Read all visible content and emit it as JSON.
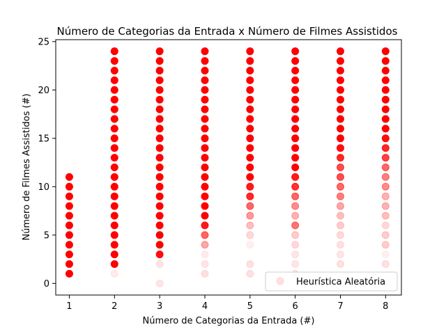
{
  "chart_data": {
    "type": "scatter",
    "title": "Número de Categorias da Entrada x Número de Filmes Assistidos",
    "xlabel": "Número de Categorias da Entrada (#)",
    "ylabel": "Número de Filmes Assistidos (#)",
    "xlim": [
      0.7,
      8.35
    ],
    "ylim": [
      -1.2,
      25.2
    ],
    "xticks": [
      1,
      2,
      3,
      4,
      5,
      6,
      7,
      8
    ],
    "yticks": [
      0,
      5,
      10,
      15,
      20,
      25
    ],
    "grid": false,
    "legend": {
      "position": "bottom-right",
      "entries": [
        "Heurística Aleatória"
      ]
    },
    "marker_color": "#ff0000",
    "series": [
      {
        "name": "Heurística Aleatória",
        "points": [
          {
            "x": 1,
            "y": 1,
            "alpha": 1
          },
          {
            "x": 1,
            "y": 2,
            "alpha": 1
          },
          {
            "x": 1,
            "y": 3,
            "alpha": 1
          },
          {
            "x": 1,
            "y": 4,
            "alpha": 1
          },
          {
            "x": 1,
            "y": 5,
            "alpha": 1
          },
          {
            "x": 1,
            "y": 6,
            "alpha": 1
          },
          {
            "x": 1,
            "y": 7,
            "alpha": 1
          },
          {
            "x": 1,
            "y": 8,
            "alpha": 1
          },
          {
            "x": 1,
            "y": 9,
            "alpha": 1
          },
          {
            "x": 1,
            "y": 10,
            "alpha": 1
          },
          {
            "x": 1,
            "y": 11,
            "alpha": 1
          },
          {
            "x": 2,
            "y": 1,
            "alpha": 0.08
          },
          {
            "x": 2,
            "y": 2,
            "alpha": 1
          },
          {
            "x": 2,
            "y": 3,
            "alpha": 1
          },
          {
            "x": 2,
            "y": 4,
            "alpha": 1
          },
          {
            "x": 2,
            "y": 5,
            "alpha": 1
          },
          {
            "x": 2,
            "y": 6,
            "alpha": 1
          },
          {
            "x": 2,
            "y": 7,
            "alpha": 1
          },
          {
            "x": 2,
            "y": 8,
            "alpha": 1
          },
          {
            "x": 2,
            "y": 9,
            "alpha": 1
          },
          {
            "x": 2,
            "y": 10,
            "alpha": 1
          },
          {
            "x": 2,
            "y": 11,
            "alpha": 1
          },
          {
            "x": 2,
            "y": 12,
            "alpha": 1
          },
          {
            "x": 2,
            "y": 13,
            "alpha": 1
          },
          {
            "x": 2,
            "y": 14,
            "alpha": 1
          },
          {
            "x": 2,
            "y": 15,
            "alpha": 1
          },
          {
            "x": 2,
            "y": 16,
            "alpha": 1
          },
          {
            "x": 2,
            "y": 17,
            "alpha": 1
          },
          {
            "x": 2,
            "y": 18,
            "alpha": 1
          },
          {
            "x": 2,
            "y": 19,
            "alpha": 1
          },
          {
            "x": 2,
            "y": 20,
            "alpha": 1
          },
          {
            "x": 2,
            "y": 21,
            "alpha": 1
          },
          {
            "x": 2,
            "y": 22,
            "alpha": 1
          },
          {
            "x": 2,
            "y": 23,
            "alpha": 1
          },
          {
            "x": 2,
            "y": 24,
            "alpha": 1
          },
          {
            "x": 3,
            "y": 0,
            "alpha": 0.1
          },
          {
            "x": 3,
            "y": 2,
            "alpha": 0.1
          },
          {
            "x": 3,
            "y": 3,
            "alpha": 0.95
          },
          {
            "x": 3,
            "y": 4,
            "alpha": 1
          },
          {
            "x": 3,
            "y": 5,
            "alpha": 1
          },
          {
            "x": 3,
            "y": 6,
            "alpha": 1
          },
          {
            "x": 3,
            "y": 7,
            "alpha": 1
          },
          {
            "x": 3,
            "y": 8,
            "alpha": 1
          },
          {
            "x": 3,
            "y": 9,
            "alpha": 1
          },
          {
            "x": 3,
            "y": 10,
            "alpha": 1
          },
          {
            "x": 3,
            "y": 11,
            "alpha": 1
          },
          {
            "x": 3,
            "y": 12,
            "alpha": 1
          },
          {
            "x": 3,
            "y": 13,
            "alpha": 1
          },
          {
            "x": 3,
            "y": 14,
            "alpha": 1
          },
          {
            "x": 3,
            "y": 15,
            "alpha": 1
          },
          {
            "x": 3,
            "y": 16,
            "alpha": 1
          },
          {
            "x": 3,
            "y": 17,
            "alpha": 1
          },
          {
            "x": 3,
            "y": 18,
            "alpha": 1
          },
          {
            "x": 3,
            "y": 19,
            "alpha": 1
          },
          {
            "x": 3,
            "y": 20,
            "alpha": 1
          },
          {
            "x": 3,
            "y": 21,
            "alpha": 1
          },
          {
            "x": 3,
            "y": 22,
            "alpha": 1
          },
          {
            "x": 3,
            "y": 23,
            "alpha": 1
          },
          {
            "x": 3,
            "y": 24,
            "alpha": 1
          },
          {
            "x": 4,
            "y": 1,
            "alpha": 0.12
          },
          {
            "x": 4,
            "y": 2,
            "alpha": 0.1
          },
          {
            "x": 4,
            "y": 3,
            "alpha": 0.08
          },
          {
            "x": 4,
            "y": 4,
            "alpha": 0.35
          },
          {
            "x": 4,
            "y": 5,
            "alpha": 0.6
          },
          {
            "x": 4,
            "y": 6,
            "alpha": 0.9
          },
          {
            "x": 4,
            "y": 7,
            "alpha": 1
          },
          {
            "x": 4,
            "y": 8,
            "alpha": 1
          },
          {
            "x": 4,
            "y": 9,
            "alpha": 1
          },
          {
            "x": 4,
            "y": 10,
            "alpha": 1
          },
          {
            "x": 4,
            "y": 11,
            "alpha": 1
          },
          {
            "x": 4,
            "y": 12,
            "alpha": 1
          },
          {
            "x": 4,
            "y": 13,
            "alpha": 1
          },
          {
            "x": 4,
            "y": 14,
            "alpha": 1
          },
          {
            "x": 4,
            "y": 15,
            "alpha": 1
          },
          {
            "x": 4,
            "y": 16,
            "alpha": 1
          },
          {
            "x": 4,
            "y": 17,
            "alpha": 1
          },
          {
            "x": 4,
            "y": 18,
            "alpha": 1
          },
          {
            "x": 4,
            "y": 19,
            "alpha": 1
          },
          {
            "x": 4,
            "y": 20,
            "alpha": 1
          },
          {
            "x": 4,
            "y": 21,
            "alpha": 1
          },
          {
            "x": 4,
            "y": 22,
            "alpha": 1
          },
          {
            "x": 4,
            "y": 23,
            "alpha": 1
          },
          {
            "x": 4,
            "y": 24,
            "alpha": 1
          },
          {
            "x": 5,
            "y": 1,
            "alpha": 0.12
          },
          {
            "x": 5,
            "y": 2,
            "alpha": 0.12
          },
          {
            "x": 5,
            "y": 4,
            "alpha": 0.06
          },
          {
            "x": 5,
            "y": 5,
            "alpha": 0.15
          },
          {
            "x": 5,
            "y": 6,
            "alpha": 0.25
          },
          {
            "x": 5,
            "y": 7,
            "alpha": 0.4
          },
          {
            "x": 5,
            "y": 8,
            "alpha": 0.6
          },
          {
            "x": 5,
            "y": 9,
            "alpha": 0.85
          },
          {
            "x": 5,
            "y": 10,
            "alpha": 0.9
          },
          {
            "x": 5,
            "y": 11,
            "alpha": 1
          },
          {
            "x": 5,
            "y": 12,
            "alpha": 1
          },
          {
            "x": 5,
            "y": 13,
            "alpha": 1
          },
          {
            "x": 5,
            "y": 14,
            "alpha": 1
          },
          {
            "x": 5,
            "y": 15,
            "alpha": 1
          },
          {
            "x": 5,
            "y": 16,
            "alpha": 1
          },
          {
            "x": 5,
            "y": 17,
            "alpha": 1
          },
          {
            "x": 5,
            "y": 18,
            "alpha": 1
          },
          {
            "x": 5,
            "y": 19,
            "alpha": 1
          },
          {
            "x": 5,
            "y": 20,
            "alpha": 1
          },
          {
            "x": 5,
            "y": 21,
            "alpha": 1
          },
          {
            "x": 5,
            "y": 22,
            "alpha": 1
          },
          {
            "x": 5,
            "y": 23,
            "alpha": 1
          },
          {
            "x": 5,
            "y": 24,
            "alpha": 1
          },
          {
            "x": 6,
            "y": 1,
            "alpha": 0.1
          },
          {
            "x": 6,
            "y": 2,
            "alpha": 0.1
          },
          {
            "x": 6,
            "y": 3,
            "alpha": 0.1
          },
          {
            "x": 6,
            "y": 4,
            "alpha": 0.15
          },
          {
            "x": 6,
            "y": 5,
            "alpha": 0.2
          },
          {
            "x": 6,
            "y": 6,
            "alpha": 0.55
          },
          {
            "x": 6,
            "y": 7,
            "alpha": 0.3
          },
          {
            "x": 6,
            "y": 8,
            "alpha": 0.45
          },
          {
            "x": 6,
            "y": 9,
            "alpha": 0.6
          },
          {
            "x": 6,
            "y": 10,
            "alpha": 0.8
          },
          {
            "x": 6,
            "y": 11,
            "alpha": 0.9
          },
          {
            "x": 6,
            "y": 12,
            "alpha": 1
          },
          {
            "x": 6,
            "y": 13,
            "alpha": 1
          },
          {
            "x": 6,
            "y": 14,
            "alpha": 1
          },
          {
            "x": 6,
            "y": 15,
            "alpha": 1
          },
          {
            "x": 6,
            "y": 16,
            "alpha": 1
          },
          {
            "x": 6,
            "y": 17,
            "alpha": 1
          },
          {
            "x": 6,
            "y": 18,
            "alpha": 1
          },
          {
            "x": 6,
            "y": 19,
            "alpha": 1
          },
          {
            "x": 6,
            "y": 20,
            "alpha": 1
          },
          {
            "x": 6,
            "y": 21,
            "alpha": 1
          },
          {
            "x": 6,
            "y": 22,
            "alpha": 1
          },
          {
            "x": 6,
            "y": 23,
            "alpha": 1
          },
          {
            "x": 6,
            "y": 24,
            "alpha": 1
          },
          {
            "x": 7,
            "y": 2,
            "alpha": 0.12
          },
          {
            "x": 7,
            "y": 3,
            "alpha": 0.1
          },
          {
            "x": 7,
            "y": 4,
            "alpha": 0.12
          },
          {
            "x": 7,
            "y": 5,
            "alpha": 0.15
          },
          {
            "x": 7,
            "y": 6,
            "alpha": 0.2
          },
          {
            "x": 7,
            "y": 7,
            "alpha": 0.25
          },
          {
            "x": 7,
            "y": 8,
            "alpha": 0.35
          },
          {
            "x": 7,
            "y": 9,
            "alpha": 0.5
          },
          {
            "x": 7,
            "y": 10,
            "alpha": 0.6
          },
          {
            "x": 7,
            "y": 11,
            "alpha": 0.7
          },
          {
            "x": 7,
            "y": 12,
            "alpha": 0.7
          },
          {
            "x": 7,
            "y": 13,
            "alpha": 0.85
          },
          {
            "x": 7,
            "y": 14,
            "alpha": 0.95
          },
          {
            "x": 7,
            "y": 15,
            "alpha": 1
          },
          {
            "x": 7,
            "y": 16,
            "alpha": 1
          },
          {
            "x": 7,
            "y": 17,
            "alpha": 1
          },
          {
            "x": 7,
            "y": 18,
            "alpha": 1
          },
          {
            "x": 7,
            "y": 19,
            "alpha": 1
          },
          {
            "x": 7,
            "y": 20,
            "alpha": 1
          },
          {
            "x": 7,
            "y": 21,
            "alpha": 1
          },
          {
            "x": 7,
            "y": 22,
            "alpha": 1
          },
          {
            "x": 7,
            "y": 23,
            "alpha": 1
          },
          {
            "x": 7,
            "y": 24,
            "alpha": 1
          },
          {
            "x": 8,
            "y": 2,
            "alpha": 0.12
          },
          {
            "x": 8,
            "y": 3,
            "alpha": 0.06
          },
          {
            "x": 8,
            "y": 4,
            "alpha": 0.2
          },
          {
            "x": 8,
            "y": 5,
            "alpha": 0.2
          },
          {
            "x": 8,
            "y": 6,
            "alpha": 0.15
          },
          {
            "x": 8,
            "y": 7,
            "alpha": 0.25
          },
          {
            "x": 8,
            "y": 8,
            "alpha": 0.3
          },
          {
            "x": 8,
            "y": 9,
            "alpha": 0.3
          },
          {
            "x": 8,
            "y": 10,
            "alpha": 0.45
          },
          {
            "x": 8,
            "y": 11,
            "alpha": 0.5
          },
          {
            "x": 8,
            "y": 12,
            "alpha": 0.6
          },
          {
            "x": 8,
            "y": 13,
            "alpha": 0.75
          },
          {
            "x": 8,
            "y": 14,
            "alpha": 0.85
          },
          {
            "x": 8,
            "y": 15,
            "alpha": 0.95
          },
          {
            "x": 8,
            "y": 16,
            "alpha": 1
          },
          {
            "x": 8,
            "y": 17,
            "alpha": 1
          },
          {
            "x": 8,
            "y": 18,
            "alpha": 1
          },
          {
            "x": 8,
            "y": 19,
            "alpha": 1
          },
          {
            "x": 8,
            "y": 20,
            "alpha": 1
          },
          {
            "x": 8,
            "y": 21,
            "alpha": 1
          },
          {
            "x": 8,
            "y": 22,
            "alpha": 1
          },
          {
            "x": 8,
            "y": 23,
            "alpha": 1
          },
          {
            "x": 8,
            "y": 24,
            "alpha": 1
          }
        ]
      }
    ]
  }
}
